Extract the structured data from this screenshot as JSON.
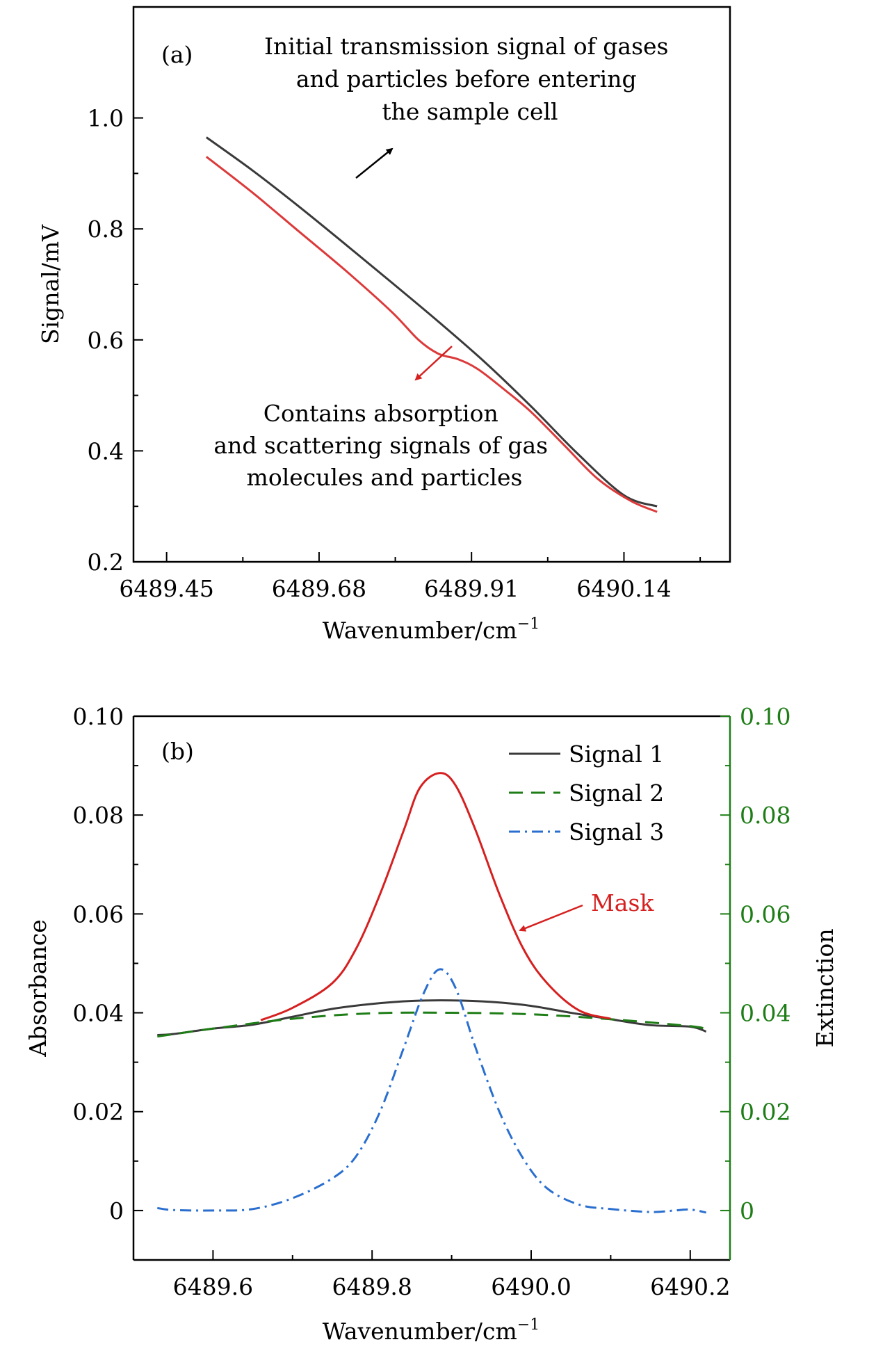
{
  "colors": {
    "signal_black": "#3a3a3a",
    "signal_red": "#dc3a3a",
    "mask_red": "#d62020",
    "green": "#1e7d16",
    "blue": "#2a6fcf"
  },
  "chart_data": [
    {
      "type": "line",
      "panel_label": "(a)",
      "xlabel": "Wavenumber/cm",
      "xlabel_exponent": "−1",
      "ylabel": "Signal/mV",
      "xlim": [
        6489.4,
        6490.3
      ],
      "ylim": [
        0.2,
        1.2
      ],
      "x_ticks": [
        "6489.45",
        "6489.68",
        "6489.91",
        "6490.14"
      ],
      "x_tick_values": [
        6489.45,
        6489.68,
        6489.91,
        6490.14
      ],
      "y_ticks": [
        "0.2",
        "0.4",
        "0.6",
        "0.8",
        "1.0"
      ],
      "y_tick_values": [
        0.2,
        0.4,
        0.6,
        0.8,
        1.0
      ],
      "series": [
        {
          "color": "#3a3a3a",
          "x": [
            6489.51,
            6489.58,
            6489.65,
            6489.72,
            6489.79,
            6489.86,
            6489.93,
            6490.0,
            6490.07,
            6490.14,
            6490.19
          ],
          "y": [
            0.965,
            0.905,
            0.84,
            0.772,
            0.703,
            0.633,
            0.56,
            0.48,
            0.395,
            0.32,
            0.3
          ]
        },
        {
          "color": "#dc3a3a",
          "x": [
            6489.51,
            6489.58,
            6489.65,
            6489.72,
            6489.79,
            6489.83,
            6489.86,
            6489.89,
            6489.92,
            6489.96,
            6490.0,
            6490.05,
            6490.1,
            6490.15,
            6490.19
          ],
          "y": [
            0.93,
            0.865,
            0.795,
            0.725,
            0.65,
            0.6,
            0.575,
            0.565,
            0.547,
            0.51,
            0.47,
            0.41,
            0.35,
            0.31,
            0.29
          ]
        }
      ],
      "annotations": [
        {
          "lines": [
            "Initial transmission signal of gases",
            "and particles before entering",
            "the sample cell"
          ]
        },
        {
          "lines": [
            "Contains absorption",
            "and scattering signals of gas",
            "molecules and particles"
          ]
        }
      ]
    },
    {
      "type": "line",
      "panel_label": "(b)",
      "xlabel": "Wavenumber/cm",
      "xlabel_exponent": "−1",
      "ylabel": "Absorbance",
      "y2label": "Extinction",
      "xlim": [
        6489.5,
        6490.25
      ],
      "ylim": [
        -0.01,
        0.1
      ],
      "x_ticks": [
        "6489.6",
        "6489.8",
        "6490.0",
        "6490.2"
      ],
      "x_tick_values": [
        6489.6,
        6489.8,
        6490.0,
        6490.2
      ],
      "y_ticks": [
        "0",
        "0.02",
        "0.04",
        "0.06",
        "0.08",
        "0.10"
      ],
      "y_tick_values": [
        0,
        0.02,
        0.04,
        0.06,
        0.08,
        0.1
      ],
      "y2_ticks": [
        "0",
        "0.02",
        "0.04",
        "0.06",
        "0.08",
        "0.10"
      ],
      "series": [
        {
          "name": "Signal 1",
          "style": "solid",
          "color": "#3a3a3a",
          "x": [
            6489.53,
            6489.55,
            6489.6,
            6489.65,
            6489.7,
            6489.75,
            6489.8,
            6489.85,
            6489.9,
            6489.95,
            6490.0,
            6490.05,
            6490.1,
            6490.15,
            6490.2,
            6490.22
          ],
          "y": [
            0.0355,
            0.0357,
            0.0368,
            0.0376,
            0.0392,
            0.0408,
            0.0418,
            0.0424,
            0.0425,
            0.0422,
            0.0414,
            0.04,
            0.0387,
            0.0375,
            0.0372,
            0.0362
          ]
        },
        {
          "name": "Signal 2",
          "style": "dashed",
          "color": "#1e7d16",
          "x": [
            6489.53,
            6489.6,
            6489.7,
            6489.8,
            6489.9,
            6490.0,
            6490.1,
            6490.2,
            6490.22
          ],
          "y": [
            0.0352,
            0.0368,
            0.0388,
            0.0399,
            0.04,
            0.0397,
            0.0387,
            0.0373,
            0.0367
          ]
        },
        {
          "name": "Signal 3",
          "style": "dashdot",
          "color": "#2a6fcf",
          "x": [
            6489.53,
            6489.55,
            6489.6,
            6489.65,
            6489.7,
            6489.75,
            6489.78,
            6489.81,
            6489.84,
            6489.865,
            6489.885,
            6489.905,
            6489.93,
            6489.96,
            6489.99,
            6490.02,
            6490.06,
            6490.1,
            6490.15,
            6490.18,
            6490.2,
            6490.22
          ],
          "y": [
            0.0005,
            0.0001,
            0.0,
            0.0003,
            0.0025,
            0.0065,
            0.011,
            0.02,
            0.033,
            0.044,
            0.0488,
            0.045,
            0.033,
            0.02,
            0.0105,
            0.0045,
            0.0012,
            0.0003,
            -0.0003,
            0.0,
            0.0002,
            -0.0004
          ]
        },
        {
          "name": "Mask",
          "style": "solid",
          "color": "#d62020",
          "x": [
            6489.66,
            6489.7,
            6489.75,
            6489.78,
            6489.81,
            6489.84,
            6489.86,
            6489.885,
            6489.905,
            6489.93,
            6489.96,
            6489.99,
            6490.02,
            6490.06,
            6490.1
          ],
          "y": [
            0.0385,
            0.041,
            0.046,
            0.053,
            0.064,
            0.077,
            0.0855,
            0.0885,
            0.086,
            0.077,
            0.064,
            0.053,
            0.046,
            0.0405,
            0.0388
          ]
        }
      ],
      "legend": {
        "placement": "top-right",
        "entries": [
          "Signal 1",
          "Signal 2",
          "Signal 3"
        ]
      },
      "annotations": [
        {
          "text": "Mask"
        }
      ]
    }
  ]
}
